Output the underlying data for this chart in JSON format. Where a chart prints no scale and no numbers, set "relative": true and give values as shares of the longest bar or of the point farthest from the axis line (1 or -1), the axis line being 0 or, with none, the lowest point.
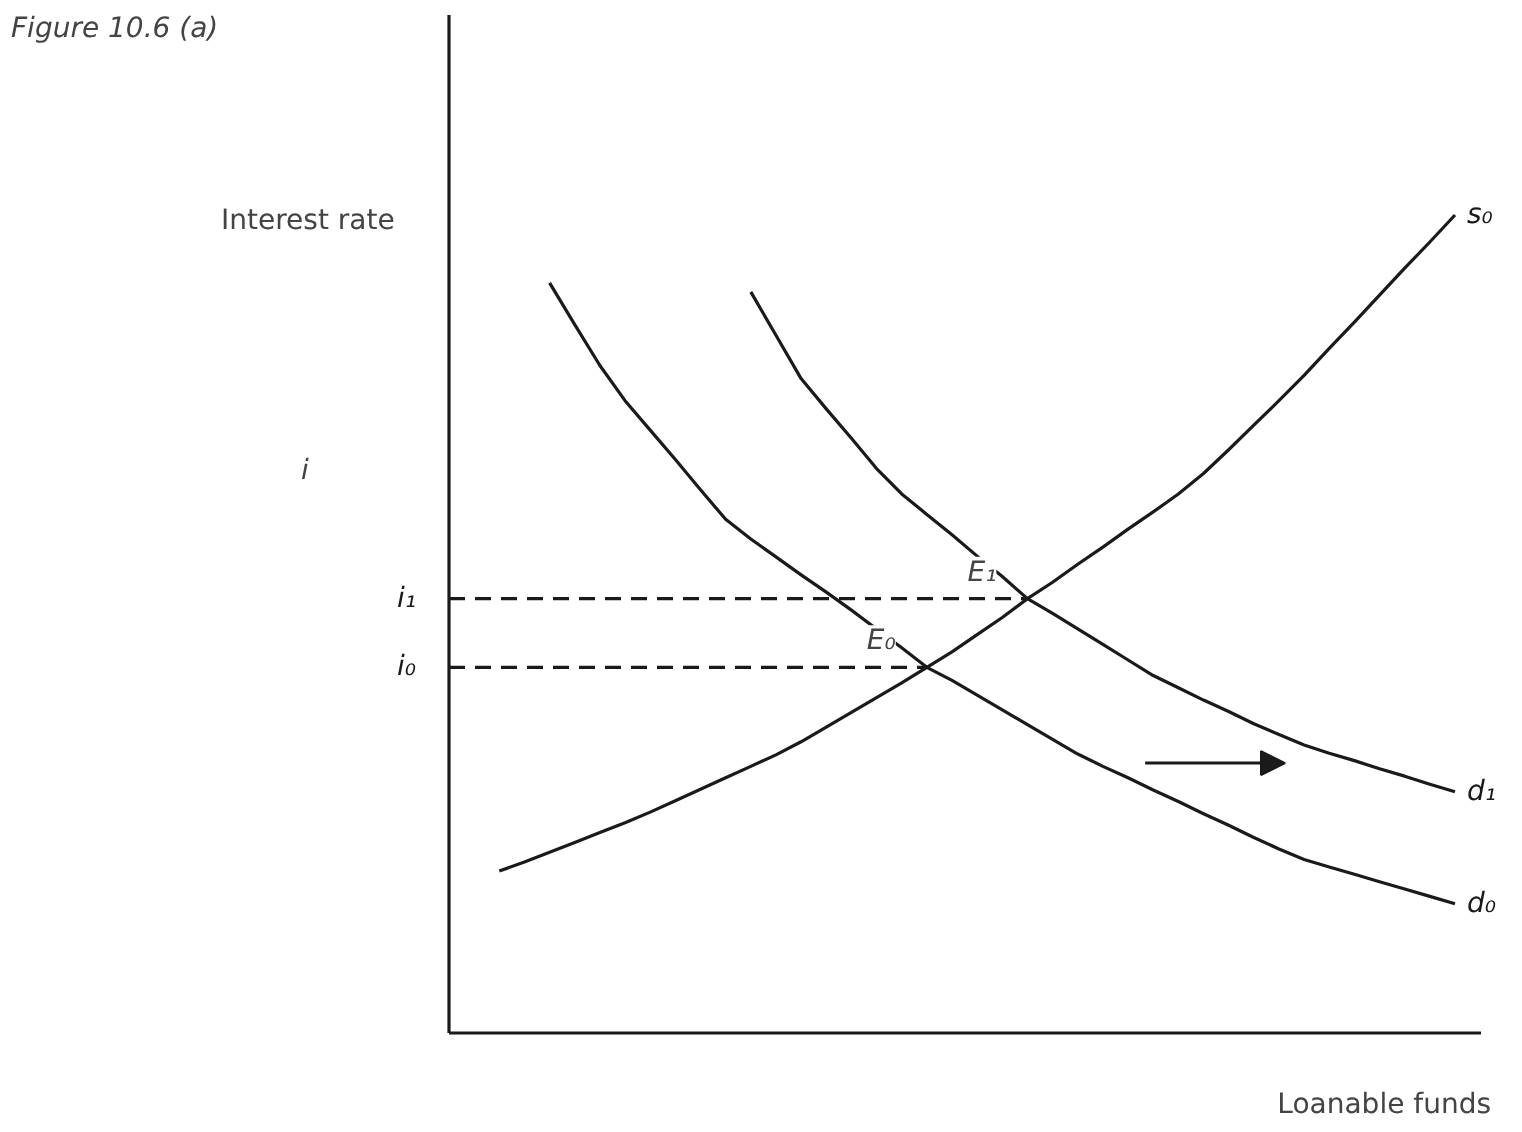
{
  "chart_data": {
    "type": "line",
    "title": "Figure 10.6 (a)",
    "xlabel": "Loanable funds",
    "ylabel": "Interest rate",
    "relative": true,
    "categories": [
      null,
      null,
      null,
      null,
      null,
      null,
      null,
      null,
      null,
      null,
      null,
      null,
      null,
      null,
      null,
      null,
      null,
      null,
      null,
      null,
      null,
      null,
      null,
      null,
      null,
      null,
      null,
      null,
      null,
      null,
      null,
      null,
      null,
      null,
      null,
      null,
      null,
      null,
      null,
      null,
      null
    ],
    "series": [
      {
        "name": "s₀",
        "color": "#1a1a1a",
        "values": [
          null,
          null,
          0.198,
          0.209,
          0.221,
          0.233,
          0.245,
          0.257,
          0.27,
          0.284,
          0.298,
          0.312,
          0.326,
          0.34,
          0.356,
          0.374,
          0.392,
          0.41,
          0.428,
          0.447,
          0.466,
          0.487,
          0.508,
          0.531,
          0.551,
          0.573,
          0.594,
          0.616,
          0.637,
          0.659,
          0.684,
          0.713,
          0.743,
          0.773,
          0.804,
          0.837,
          0.869,
          0.902,
          0.935,
          0.967,
          1.0
        ]
      },
      {
        "name": "d₀",
        "color": "#1a1a1a",
        "values": [
          null,
          null,
          null,
          null,
          0.917,
          0.866,
          0.816,
          0.773,
          0.737,
          0.701,
          0.664,
          0.628,
          0.604,
          0.582,
          0.56,
          0.539,
          0.517,
          0.494,
          0.471,
          0.447,
          0.431,
          0.413,
          0.395,
          0.377,
          0.359,
          0.341,
          0.326,
          0.312,
          0.297,
          0.283,
          0.268,
          0.254,
          0.239,
          0.225,
          0.212,
          0.203,
          0.194,
          0.185,
          0.176,
          0.167,
          0.158
        ]
      },
      {
        "name": "d₁",
        "color": "#1a1a1a",
        "values": [
          null,
          null,
          null,
          null,
          null,
          null,
          null,
          null,
          null,
          null,
          null,
          null,
          0.906,
          0.853,
          0.8,
          0.763,
          0.727,
          0.69,
          0.659,
          0.634,
          0.609,
          0.583,
          0.558,
          0.531,
          0.513,
          0.494,
          0.475,
          0.456,
          0.437,
          0.422,
          0.407,
          0.393,
          0.378,
          0.365,
          0.352,
          0.342,
          0.333,
          0.323,
          0.314,
          0.304,
          0.295
        ]
      },
      {
        "name": "i₁",
        "color": "#1a1a1a",
        "line_style": "dashed",
        "values": [
          0.531,
          0.531,
          0.531,
          0.531,
          0.531,
          0.531,
          0.531,
          0.531,
          0.531,
          0.531,
          0.531,
          0.531,
          0.531,
          0.531,
          0.531,
          0.531,
          0.531,
          0.531,
          0.531,
          0.531,
          0.531,
          0.531,
          0.531,
          0.531,
          null,
          null,
          null,
          null,
          null,
          null,
          null,
          null,
          null,
          null,
          null,
          null,
          null,
          null,
          null,
          null,
          null
        ]
      },
      {
        "name": "i₀",
        "color": "#1a1a1a",
        "line_style": "dashed",
        "values": [
          0.447,
          0.447,
          0.447,
          0.447,
          0.447,
          0.447,
          0.447,
          0.447,
          0.447,
          0.447,
          0.447,
          0.447,
          0.447,
          0.447,
          0.447,
          0.447,
          0.447,
          0.447,
          0.447,
          0.447,
          null,
          null,
          null,
          null,
          null,
          null,
          null,
          null,
          null,
          null,
          null,
          null,
          null,
          null,
          null,
          null,
          null,
          null,
          null,
          null,
          null
        ]
      }
    ],
    "annotations": [
      "i",
      {
        "text": "E₁",
        "y": 0.531
      },
      {
        "text": "E₀",
        "y": 0.447
      }
    ]
  }
}
